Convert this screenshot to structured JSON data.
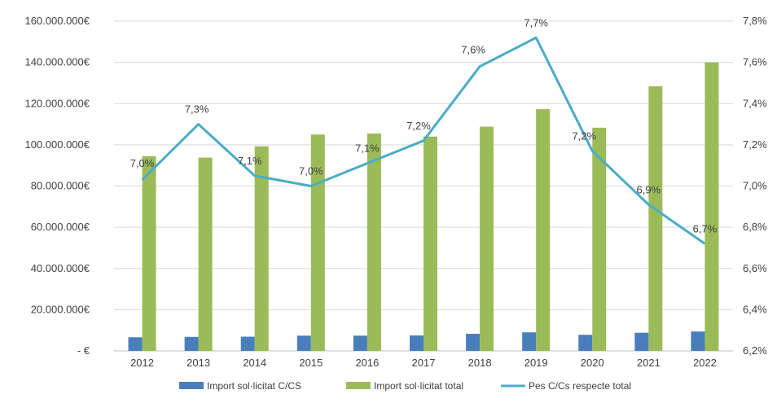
{
  "chart_data": {
    "type": "bar",
    "categories": [
      "2012",
      "2013",
      "2014",
      "2015",
      "2016",
      "2017",
      "2018",
      "2019",
      "2020",
      "2021",
      "2022"
    ],
    "series": [
      {
        "name": "Import sol·licitat C/CS",
        "type": "bar",
        "axis": "left",
        "color": "#4a7ebb",
        "values": [
          6600000,
          6800000,
          6900000,
          7400000,
          7400000,
          7500000,
          8300000,
          9000000,
          7800000,
          8800000,
          9400000
        ]
      },
      {
        "name": "Import sol·licitat total",
        "type": "bar",
        "axis": "left",
        "color": "#9bbb59",
        "values": [
          94500000,
          93800000,
          99300000,
          105000000,
          105500000,
          104000000,
          108800000,
          117300000,
          108300000,
          128400000,
          140000000
        ]
      },
      {
        "name": "Pes C/Cs respecte total",
        "type": "line",
        "axis": "right",
        "color": "#4bacc6",
        "values": [
          7.03,
          7.3,
          7.05,
          7.0,
          7.11,
          7.22,
          7.58,
          7.72,
          7.17,
          6.91,
          6.72
        ],
        "labels": [
          "7,0%",
          "7,3%",
          "7,1%",
          "7,0%",
          "7,1%",
          "7,2%",
          "7,6%",
          "7,7%",
          "7,2%",
          "6,9%",
          "6,7%"
        ]
      }
    ],
    "y_left": {
      "lim": [
        0,
        160000000
      ],
      "ticks": [
        0,
        20000000,
        40000000,
        60000000,
        80000000,
        100000000,
        120000000,
        140000000,
        160000000
      ],
      "tick_labels": [
        "-   €",
        "20.000.000€",
        "40.000.000€",
        "60.000.000€",
        "80.000.000€",
        "100.000.000€",
        "120.000.000€",
        "140.000.000€",
        "160.000.000€"
      ]
    },
    "y_right": {
      "lim": [
        6.2,
        7.8
      ],
      "ticks": [
        6.2,
        6.4,
        6.6,
        6.8,
        7.0,
        7.2,
        7.4,
        7.6,
        7.8
      ],
      "tick_labels": [
        "6,2%",
        "6,4%",
        "6,6%",
        "6,8%",
        "7,0%",
        "7,2%",
        "7,4%",
        "7,6%",
        "7,8%"
      ]
    },
    "grid": true,
    "legend": "bottom",
    "title": "",
    "xlabel": "",
    "ylabel": ""
  }
}
